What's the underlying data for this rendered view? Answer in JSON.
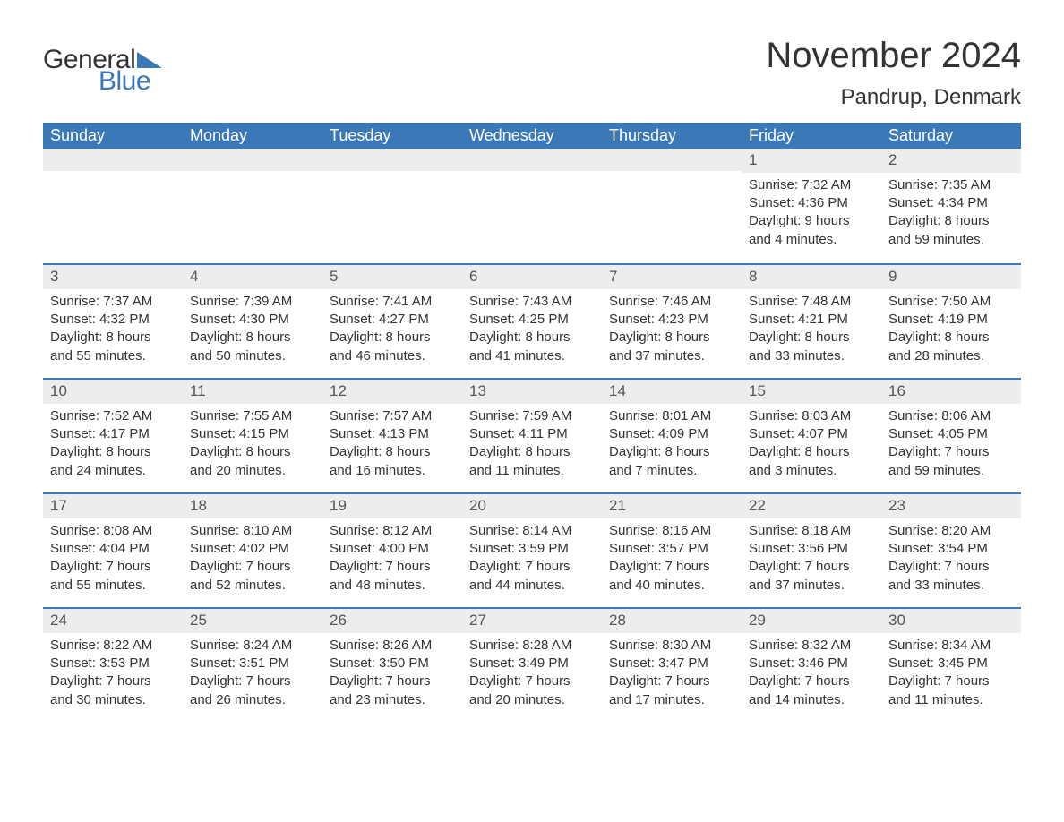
{
  "logo": {
    "word1": "General",
    "word2": "Blue",
    "triangle_color": "#3b78b8"
  },
  "title": "November 2024",
  "location": "Pandrup, Denmark",
  "colors": {
    "header_bg": "#3b78b8",
    "header_text": "#ffffff",
    "daynum_bg": "#ededed",
    "daynum_text": "#555555",
    "body_text": "#333333",
    "rule": "#3b78b8",
    "background": "#ffffff"
  },
  "typography": {
    "title_fontsize": 40,
    "location_fontsize": 24,
    "header_fontsize": 18,
    "daynum_fontsize": 17,
    "body_fontsize": 15,
    "font_family": "Arial"
  },
  "day_headers": [
    "Sunday",
    "Monday",
    "Tuesday",
    "Wednesday",
    "Thursday",
    "Friday",
    "Saturday"
  ],
  "weeks": [
    [
      {
        "empty": true
      },
      {
        "empty": true
      },
      {
        "empty": true
      },
      {
        "empty": true
      },
      {
        "empty": true
      },
      {
        "n": "1",
        "sunrise": "Sunrise: 7:32 AM",
        "sunset": "Sunset: 4:36 PM",
        "d1": "Daylight: 9 hours",
        "d2": "and 4 minutes."
      },
      {
        "n": "2",
        "sunrise": "Sunrise: 7:35 AM",
        "sunset": "Sunset: 4:34 PM",
        "d1": "Daylight: 8 hours",
        "d2": "and 59 minutes."
      }
    ],
    [
      {
        "n": "3",
        "sunrise": "Sunrise: 7:37 AM",
        "sunset": "Sunset: 4:32 PM",
        "d1": "Daylight: 8 hours",
        "d2": "and 55 minutes."
      },
      {
        "n": "4",
        "sunrise": "Sunrise: 7:39 AM",
        "sunset": "Sunset: 4:30 PM",
        "d1": "Daylight: 8 hours",
        "d2": "and 50 minutes."
      },
      {
        "n": "5",
        "sunrise": "Sunrise: 7:41 AM",
        "sunset": "Sunset: 4:27 PM",
        "d1": "Daylight: 8 hours",
        "d2": "and 46 minutes."
      },
      {
        "n": "6",
        "sunrise": "Sunrise: 7:43 AM",
        "sunset": "Sunset: 4:25 PM",
        "d1": "Daylight: 8 hours",
        "d2": "and 41 minutes."
      },
      {
        "n": "7",
        "sunrise": "Sunrise: 7:46 AM",
        "sunset": "Sunset: 4:23 PM",
        "d1": "Daylight: 8 hours",
        "d2": "and 37 minutes."
      },
      {
        "n": "8",
        "sunrise": "Sunrise: 7:48 AM",
        "sunset": "Sunset: 4:21 PM",
        "d1": "Daylight: 8 hours",
        "d2": "and 33 minutes."
      },
      {
        "n": "9",
        "sunrise": "Sunrise: 7:50 AM",
        "sunset": "Sunset: 4:19 PM",
        "d1": "Daylight: 8 hours",
        "d2": "and 28 minutes."
      }
    ],
    [
      {
        "n": "10",
        "sunrise": "Sunrise: 7:52 AM",
        "sunset": "Sunset: 4:17 PM",
        "d1": "Daylight: 8 hours",
        "d2": "and 24 minutes."
      },
      {
        "n": "11",
        "sunrise": "Sunrise: 7:55 AM",
        "sunset": "Sunset: 4:15 PM",
        "d1": "Daylight: 8 hours",
        "d2": "and 20 minutes."
      },
      {
        "n": "12",
        "sunrise": "Sunrise: 7:57 AM",
        "sunset": "Sunset: 4:13 PM",
        "d1": "Daylight: 8 hours",
        "d2": "and 16 minutes."
      },
      {
        "n": "13",
        "sunrise": "Sunrise: 7:59 AM",
        "sunset": "Sunset: 4:11 PM",
        "d1": "Daylight: 8 hours",
        "d2": "and 11 minutes."
      },
      {
        "n": "14",
        "sunrise": "Sunrise: 8:01 AM",
        "sunset": "Sunset: 4:09 PM",
        "d1": "Daylight: 8 hours",
        "d2": "and 7 minutes."
      },
      {
        "n": "15",
        "sunrise": "Sunrise: 8:03 AM",
        "sunset": "Sunset: 4:07 PM",
        "d1": "Daylight: 8 hours",
        "d2": "and 3 minutes."
      },
      {
        "n": "16",
        "sunrise": "Sunrise: 8:06 AM",
        "sunset": "Sunset: 4:05 PM",
        "d1": "Daylight: 7 hours",
        "d2": "and 59 minutes."
      }
    ],
    [
      {
        "n": "17",
        "sunrise": "Sunrise: 8:08 AM",
        "sunset": "Sunset: 4:04 PM",
        "d1": "Daylight: 7 hours",
        "d2": "and 55 minutes."
      },
      {
        "n": "18",
        "sunrise": "Sunrise: 8:10 AM",
        "sunset": "Sunset: 4:02 PM",
        "d1": "Daylight: 7 hours",
        "d2": "and 52 minutes."
      },
      {
        "n": "19",
        "sunrise": "Sunrise: 8:12 AM",
        "sunset": "Sunset: 4:00 PM",
        "d1": "Daylight: 7 hours",
        "d2": "and 48 minutes."
      },
      {
        "n": "20",
        "sunrise": "Sunrise: 8:14 AM",
        "sunset": "Sunset: 3:59 PM",
        "d1": "Daylight: 7 hours",
        "d2": "and 44 minutes."
      },
      {
        "n": "21",
        "sunrise": "Sunrise: 8:16 AM",
        "sunset": "Sunset: 3:57 PM",
        "d1": "Daylight: 7 hours",
        "d2": "and 40 minutes."
      },
      {
        "n": "22",
        "sunrise": "Sunrise: 8:18 AM",
        "sunset": "Sunset: 3:56 PM",
        "d1": "Daylight: 7 hours",
        "d2": "and 37 minutes."
      },
      {
        "n": "23",
        "sunrise": "Sunrise: 8:20 AM",
        "sunset": "Sunset: 3:54 PM",
        "d1": "Daylight: 7 hours",
        "d2": "and 33 minutes."
      }
    ],
    [
      {
        "n": "24",
        "sunrise": "Sunrise: 8:22 AM",
        "sunset": "Sunset: 3:53 PM",
        "d1": "Daylight: 7 hours",
        "d2": "and 30 minutes."
      },
      {
        "n": "25",
        "sunrise": "Sunrise: 8:24 AM",
        "sunset": "Sunset: 3:51 PM",
        "d1": "Daylight: 7 hours",
        "d2": "and 26 minutes."
      },
      {
        "n": "26",
        "sunrise": "Sunrise: 8:26 AM",
        "sunset": "Sunset: 3:50 PM",
        "d1": "Daylight: 7 hours",
        "d2": "and 23 minutes."
      },
      {
        "n": "27",
        "sunrise": "Sunrise: 8:28 AM",
        "sunset": "Sunset: 3:49 PM",
        "d1": "Daylight: 7 hours",
        "d2": "and 20 minutes."
      },
      {
        "n": "28",
        "sunrise": "Sunrise: 8:30 AM",
        "sunset": "Sunset: 3:47 PM",
        "d1": "Daylight: 7 hours",
        "d2": "and 17 minutes."
      },
      {
        "n": "29",
        "sunrise": "Sunrise: 8:32 AM",
        "sunset": "Sunset: 3:46 PM",
        "d1": "Daylight: 7 hours",
        "d2": "and 14 minutes."
      },
      {
        "n": "30",
        "sunrise": "Sunrise: 8:34 AM",
        "sunset": "Sunset: 3:45 PM",
        "d1": "Daylight: 7 hours",
        "d2": "and 11 minutes."
      }
    ]
  ]
}
